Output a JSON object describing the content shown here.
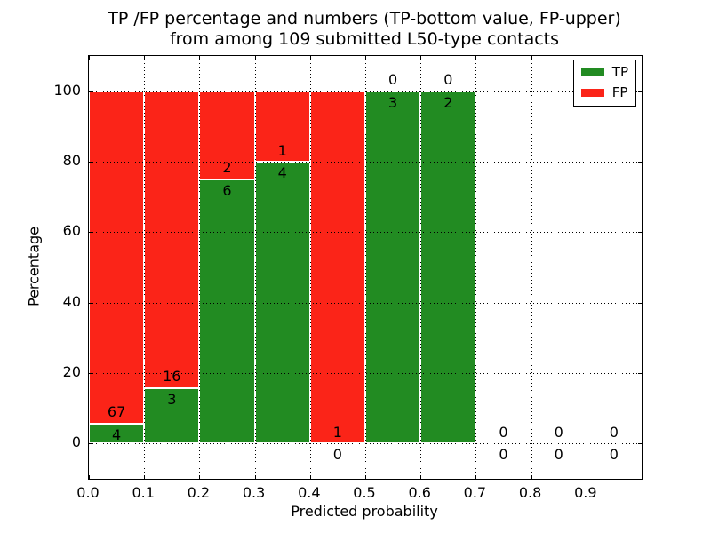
{
  "figure": {
    "title_line1": "TP /FP percentage and numbers (TP-bottom value, FP-upper)",
    "title_line2": "from among 109 submitted L50-type contacts"
  },
  "chart_data": {
    "type": "bar",
    "stacked": true,
    "title": "TP /FP percentage and numbers (TP-bottom value, FP-upper)\nfrom among 109 submitted L50-type contacts",
    "xlabel": "Predicted probability",
    "ylabel": "Percentage",
    "xlim": [
      0.0,
      1.0
    ],
    "ylim": [
      -10,
      110
    ],
    "xticks": [
      0.0,
      0.1,
      0.2,
      0.3,
      0.4,
      0.5,
      0.6,
      0.7,
      0.8,
      0.9
    ],
    "yticks": [
      0,
      20,
      40,
      60,
      80,
      100
    ],
    "grid": "dotted",
    "legend_position": "upper right",
    "total_contacts": 109,
    "legend": [
      {
        "label": "TP",
        "color": "#228b22"
      },
      {
        "label": "FP",
        "color": "#fb2418"
      }
    ],
    "bins": [
      {
        "x0": 0.0,
        "x1": 0.1,
        "tp": 4,
        "fp": 67,
        "tp_pct": 5.6,
        "fp_pct": 94.4
      },
      {
        "x0": 0.1,
        "x1": 0.2,
        "tp": 3,
        "fp": 16,
        "tp_pct": 15.8,
        "fp_pct": 84.2
      },
      {
        "x0": 0.2,
        "x1": 0.3,
        "tp": 6,
        "fp": 2,
        "tp_pct": 75.0,
        "fp_pct": 25.0
      },
      {
        "x0": 0.3,
        "x1": 0.4,
        "tp": 4,
        "fp": 1,
        "tp_pct": 80.0,
        "fp_pct": 20.0
      },
      {
        "x0": 0.4,
        "x1": 0.5,
        "tp": 0,
        "fp": 1,
        "tp_pct": 0.0,
        "fp_pct": 100.0
      },
      {
        "x0": 0.5,
        "x1": 0.6,
        "tp": 3,
        "fp": 0,
        "tp_pct": 100.0,
        "fp_pct": 0.0
      },
      {
        "x0": 0.6,
        "x1": 0.7,
        "tp": 2,
        "fp": 0,
        "tp_pct": 100.0,
        "fp_pct": 0.0
      },
      {
        "x0": 0.7,
        "x1": 0.8,
        "tp": 0,
        "fp": 0,
        "tp_pct": 0.0,
        "fp_pct": 0.0
      },
      {
        "x0": 0.8,
        "x1": 0.9,
        "tp": 0,
        "fp": 0,
        "tp_pct": 0.0,
        "fp_pct": 0.0
      },
      {
        "x0": 0.9,
        "x1": 1.0,
        "tp": 0,
        "fp": 0,
        "tp_pct": 0.0,
        "fp_pct": 0.0
      }
    ]
  }
}
